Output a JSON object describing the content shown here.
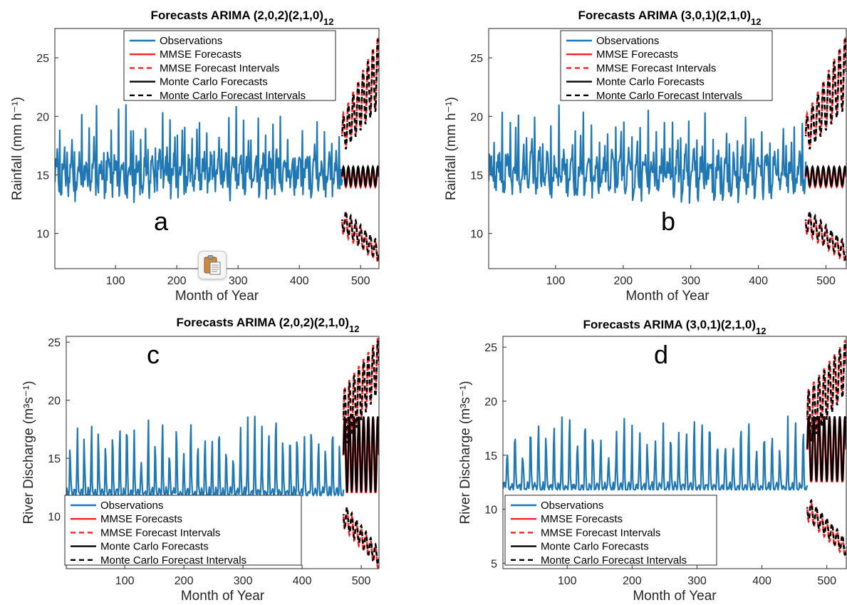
{
  "colors": {
    "observations": "#1f77b4",
    "mmse": "#ff2020",
    "monte_carlo": "#000000",
    "axis": "#262626"
  },
  "overlay": {
    "icon": "clipboard-paste-icon"
  },
  "chart_data": [
    {
      "panel": "a",
      "type": "line",
      "title": "Forecasts ARIMA (2,0,2)(2,1,0)",
      "title_subscript": "12",
      "xlabel": "Month of Year",
      "ylabel": "Rainfall (mm h⁻¹)",
      "xlim": [
        1,
        530
      ],
      "ylim": [
        7,
        27.5
      ],
      "xticks": [
        100,
        200,
        300,
        400,
        500
      ],
      "yticks": [
        10,
        15,
        20,
        25
      ],
      "legend_position": "top-center",
      "legend": [
        "Observations",
        "MMSE Forecasts",
        "MMSE Forecast Intervals",
        "Monte Carlo Forecasts",
        "Monte Carlo Forecast Intervals"
      ],
      "forecast_start": 470,
      "forecast_end": 530,
      "series": [
        {
          "name": "Observations",
          "x_range": [
            1,
            470
          ],
          "period": 12,
          "base": 15.0,
          "peak": 20.5,
          "trough": 14.0
        },
        {
          "name": "MMSE Forecasts",
          "x_range": [
            470,
            530
          ],
          "range": [
            14.0,
            15.6
          ]
        },
        {
          "name": "MMSE Forecast Intervals",
          "x_range": [
            470,
            530
          ],
          "upper_range": [
            [
              17.0,
              20.0
            ],
            [
              21.0,
              27.0
            ]
          ],
          "lower_range": [
            [
              10.0,
              12.0
            ],
            [
              7.5,
              9.0
            ]
          ]
        },
        {
          "name": "Monte Carlo Forecasts",
          "x_range": [
            470,
            530
          ],
          "range": [
            14.0,
            15.6
          ]
        },
        {
          "name": "Monte Carlo Forecast Intervals",
          "x_range": [
            470,
            530
          ],
          "upper_range": [
            [
              17.0,
              20.0
            ],
            [
              21.0,
              27.0
            ]
          ],
          "lower_range": [
            [
              10.0,
              12.0
            ],
            [
              7.5,
              9.0
            ]
          ]
        }
      ]
    },
    {
      "panel": "b",
      "type": "line",
      "title": "Forecasts ARIMA (3,0,1)(2,1,0)",
      "title_subscript": "12",
      "xlabel": "Month of Year",
      "ylabel": "Rainfall (mm h⁻¹)",
      "xlim": [
        1,
        530
      ],
      "ylim": [
        7,
        27.5
      ],
      "xticks": [
        100,
        200,
        300,
        400,
        500
      ],
      "yticks": [
        10,
        15,
        20,
        25
      ],
      "legend_position": "top-center",
      "legend": [
        "Observations",
        "MMSE Forecasts",
        "MMSE Forecast Intervals",
        "Monte Carlo Forecasts",
        "Monte Carlo Forecast Intervals"
      ],
      "forecast_start": 470,
      "forecast_end": 530,
      "series": [
        {
          "name": "Observations",
          "x_range": [
            1,
            470
          ],
          "period": 12,
          "base": 15.0,
          "peak": 20.5,
          "trough": 14.0
        },
        {
          "name": "MMSE Forecasts",
          "x_range": [
            470,
            530
          ],
          "range": [
            14.0,
            15.6
          ]
        },
        {
          "name": "MMSE Forecast Intervals",
          "x_range": [
            470,
            530
          ],
          "upper_range": [
            [
              17.0,
              20.0
            ],
            [
              21.0,
              27.0
            ]
          ],
          "lower_range": [
            [
              10.0,
              12.0
            ],
            [
              7.5,
              9.0
            ]
          ]
        },
        {
          "name": "Monte Carlo Forecasts",
          "x_range": [
            470,
            530
          ],
          "range": [
            14.0,
            15.6
          ]
        },
        {
          "name": "Monte Carlo Forecast Intervals",
          "x_range": [
            470,
            530
          ],
          "upper_range": [
            [
              17.0,
              20.0
            ],
            [
              21.0,
              27.0
            ]
          ],
          "lower_range": [
            [
              10.0,
              12.0
            ],
            [
              7.5,
              9.0
            ]
          ]
        }
      ]
    },
    {
      "panel": "c",
      "type": "line",
      "title": "Forecasts ARIMA (2,0,2)(2,1,0)",
      "title_subscript": "12",
      "xlabel": "Month of Year",
      "ylabel": "River Discharge (m³s⁻¹)",
      "xlim": [
        1,
        530
      ],
      "ylim": [
        5.5,
        25.5
      ],
      "xticks": [
        100,
        200,
        300,
        400,
        500
      ],
      "yticks": [
        10,
        15,
        20,
        25
      ],
      "legend_position": "bottom-left",
      "legend": [
        "Observations",
        "MMSE Forecasts",
        "MMSE Forecast Intervals",
        "Monte Carlo Forecasts",
        "Monte Carlo Forecast Intervals"
      ],
      "forecast_start": 470,
      "forecast_end": 530,
      "series": [
        {
          "name": "Observations",
          "x_range": [
            1,
            470
          ],
          "period": 12,
          "base": 12.0,
          "peak": 18.0,
          "trough": 11.8
        },
        {
          "name": "MMSE Forecasts",
          "x_range": [
            470,
            530
          ],
          "range": [
            12.0,
            18.5
          ]
        },
        {
          "name": "MMSE Forecast Intervals",
          "x_range": [
            470,
            530
          ],
          "upper_range": [
            [
              16.0,
              21.0
            ],
            [
              21.0,
              25.5
            ]
          ],
          "lower_range": [
            [
              9.0,
              11.0
            ],
            [
              5.5,
              7.0
            ]
          ]
        },
        {
          "name": "Monte Carlo Forecasts",
          "x_range": [
            470,
            530
          ],
          "range": [
            12.0,
            18.5
          ]
        },
        {
          "name": "Monte Carlo Forecast Intervals",
          "x_range": [
            470,
            530
          ],
          "upper_range": [
            [
              16.0,
              21.0
            ],
            [
              21.0,
              25.5
            ]
          ],
          "lower_range": [
            [
              9.0,
              11.0
            ],
            [
              5.5,
              7.0
            ]
          ]
        }
      ]
    },
    {
      "panel": "d",
      "type": "line",
      "title": "Forecasts ARIMA (3,0,1)(2,1,0)",
      "title_subscript": "12",
      "xlabel": "Month of Year",
      "ylabel": "River Discharge (m³s⁻¹)",
      "xlim": [
        1,
        530
      ],
      "ylim": [
        4.5,
        26
      ],
      "xticks": [
        100,
        200,
        300,
        400,
        500
      ],
      "yticks": [
        5,
        10,
        15,
        20,
        25
      ],
      "legend_position": "bottom-left",
      "legend": [
        "Observations",
        "MMSE Forecasts",
        "MMSE Forecast Intervals",
        "Monte Carlo Forecasts",
        "Monte Carlo Forecast Intervals"
      ],
      "forecast_start": 470,
      "forecast_end": 530,
      "series": [
        {
          "name": "Observations",
          "x_range": [
            1,
            470
          ],
          "period": 12,
          "base": 12.0,
          "peak": 18.0,
          "trough": 11.8
        },
        {
          "name": "MMSE Forecasts",
          "x_range": [
            470,
            530
          ],
          "range": [
            12.5,
            18.5
          ]
        },
        {
          "name": "MMSE Forecast Intervals",
          "x_range": [
            470,
            530
          ],
          "upper_range": [
            [
              16.0,
              21.0
            ],
            [
              21.0,
              25.8
            ]
          ],
          "lower_range": [
            [
              9.0,
              11.0
            ],
            [
              5.5,
              7.0
            ]
          ]
        },
        {
          "name": "Monte Carlo Forecasts",
          "x_range": [
            470,
            530
          ],
          "range": [
            12.5,
            18.5
          ]
        },
        {
          "name": "Monte Carlo Forecast Intervals",
          "x_range": [
            470,
            530
          ],
          "upper_range": [
            [
              16.0,
              21.0
            ],
            [
              21.0,
              25.8
            ]
          ],
          "lower_range": [
            [
              9.0,
              11.0
            ],
            [
              5.5,
              7.0
            ]
          ]
        }
      ]
    }
  ]
}
